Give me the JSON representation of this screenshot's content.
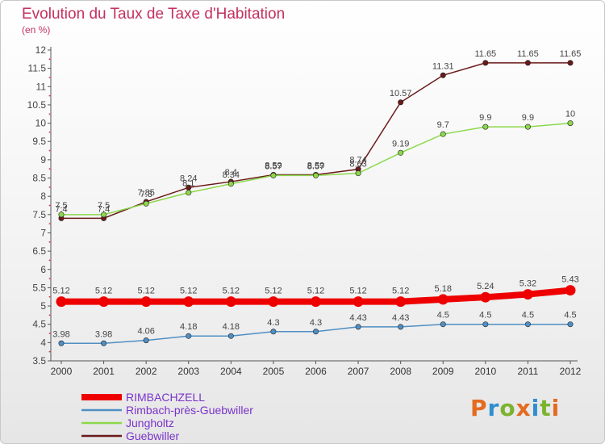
{
  "title": "Evolution du Taux de Taxe d'Habitation",
  "units": "(en %)",
  "logo": {
    "text": "Proxiti",
    "colors": [
      "#e46b1f",
      "#2f8ed0",
      "#7cb32e",
      "#e46b1f",
      "#2f8ed0",
      "#7cb32e",
      "#e46b1f"
    ]
  },
  "chart_data": {
    "type": "line",
    "x": [
      "2000",
      "2001",
      "2002",
      "2003",
      "2004",
      "2005",
      "2006",
      "2007",
      "2008",
      "2009",
      "2010",
      "2011",
      "2012"
    ],
    "ylim": [
      3.5,
      12
    ],
    "yticks": [
      "3.5",
      "4",
      "4.5",
      "5",
      "5.5",
      "6",
      "6.5",
      "7",
      "7.5",
      "8",
      "8.5",
      "9",
      "9.5",
      "10",
      "10.5",
      "11",
      "11.5",
      "12"
    ],
    "grid": false,
    "legend_position": "bottom-left",
    "series": [
      {
        "name": "RIMBACHZELL",
        "color": "#ee0000",
        "values": [
          5.12,
          5.12,
          5.12,
          5.12,
          5.12,
          5.12,
          5.12,
          5.12,
          5.12,
          5.18,
          5.24,
          5.32,
          5.43
        ],
        "labels": [
          "5.12",
          "5.12",
          "5.12",
          "5.12",
          "5.12",
          "5.12",
          "5.12",
          "5.12",
          "5.12",
          "5.18",
          "5.24",
          "5.32",
          "5.43"
        ]
      },
      {
        "name": "Rimbach-près-Guebwiller",
        "color": "#4f8fc4",
        "values": [
          3.98,
          3.98,
          4.06,
          4.18,
          4.18,
          4.3,
          4.3,
          4.43,
          4.43,
          4.5,
          4.5,
          4.5,
          4.5
        ],
        "labels": [
          "3.98",
          "3.98",
          "4.06",
          "4.18",
          "4.18",
          "4.3",
          "4.3",
          "4.43",
          "4.43",
          "4.5",
          "4.5",
          "4.5",
          "4.5"
        ]
      },
      {
        "name": "Jungholtz",
        "color": "#8cd84c",
        "values": [
          7.5,
          7.5,
          7.8,
          8.1,
          8.34,
          8.57,
          8.57,
          8.63,
          9.19,
          9.7,
          9.9,
          9.9,
          10
        ],
        "labels": [
          "7.5",
          "7.5",
          "7.8",
          "8.1",
          "8.34",
          "8.57",
          "8.57",
          "8.63",
          "9.19",
          "9.7",
          "9.9",
          "9.9",
          "10"
        ]
      },
      {
        "name": "Guebwiller",
        "color": "#6b1a1a",
        "values": [
          7.4,
          7.4,
          7.85,
          8.24,
          8.4,
          8.59,
          8.59,
          8.74,
          10.57,
          11.31,
          11.65,
          11.65,
          11.65
        ],
        "labels": [
          "7.4",
          "7.4",
          "7.85",
          "8.24",
          "8.4",
          "8.59",
          "8.59",
          "8.74",
          "10.57",
          "11.31",
          "11.65",
          "11.65",
          "11.65"
        ]
      }
    ]
  }
}
